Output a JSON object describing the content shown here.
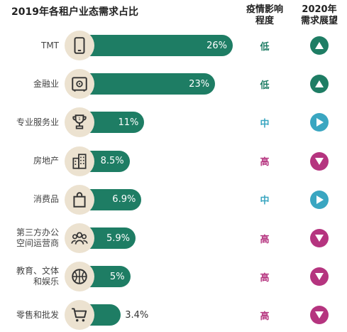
{
  "chart_data": {
    "type": "bar",
    "title": "2019年各租户业态需求占比",
    "columns": {
      "impact": "疫情影响\n程度",
      "outlook": "2020年\n需求展望"
    },
    "categories": [
      "TMT",
      "金融业",
      "专业服务业",
      "房地产",
      "消费品",
      "第三方办公\n空间运营商",
      "教育、文体\n和娱乐",
      "零售和批发"
    ],
    "value_labels": [
      "26%",
      "23%",
      "11%",
      "8.5%",
      "6.9%",
      "5.9%",
      "5%",
      "3.4%"
    ],
    "values": [
      26,
      23,
      11,
      8.5,
      6.9,
      5.9,
      5,
      3.4
    ],
    "icons": [
      "tablet-icon",
      "safe-icon",
      "trophy-icon",
      "building-icon",
      "shopping-bag-icon",
      "people-group-icon",
      "basketball-icon",
      "shopping-cart-icon"
    ],
    "impact": [
      "低",
      "低",
      "中",
      "高",
      "中",
      "高",
      "高",
      "高"
    ],
    "outlook": [
      "up",
      "up",
      "right",
      "down",
      "right",
      "down",
      "down",
      "down"
    ],
    "xlim": [
      0,
      26
    ],
    "colors": {
      "bar": "#1e7d64",
      "low": "#1e7d64",
      "mid": "#3aa6c1",
      "high": "#b5347f",
      "icon_bg": "#ece2d0"
    }
  }
}
